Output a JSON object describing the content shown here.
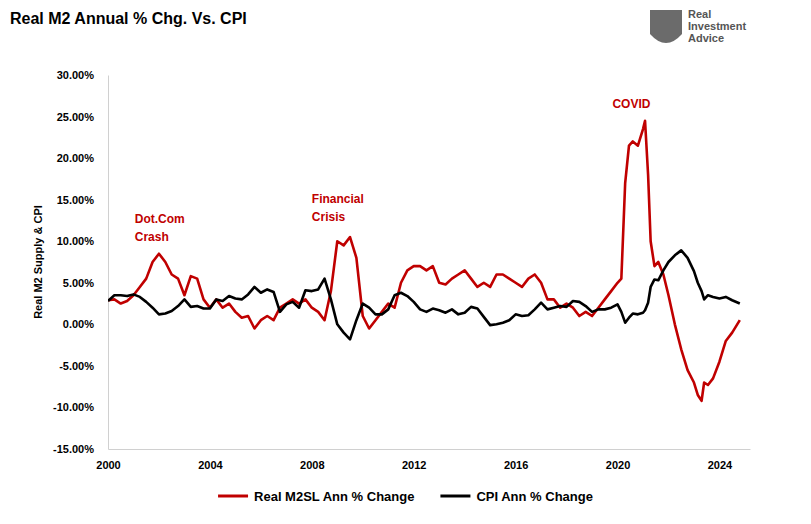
{
  "chart_data": {
    "type": "line",
    "title": "Real M2 Annual % Chg. Vs. CPI",
    "watermark": "Real Investment Advice",
    "y_label": "Real M2 Supply & CPI",
    "x": [
      2000,
      2000.25,
      2000.5,
      2000.75,
      2001,
      2001.25,
      2001.5,
      2001.75,
      2002,
      2002.25,
      2002.5,
      2002.75,
      2003,
      2003.25,
      2003.5,
      2003.75,
      2004,
      2004.25,
      2004.5,
      2004.75,
      2005,
      2005.25,
      2005.5,
      2005.75,
      2006,
      2006.25,
      2006.5,
      2006.75,
      2007,
      2007.25,
      2007.5,
      2007.75,
      2008,
      2008.25,
      2008.5,
      2008.75,
      2009,
      2009.25,
      2009.5,
      2009.75,
      2010,
      2010.25,
      2010.5,
      2010.75,
      2011,
      2011.25,
      2011.5,
      2011.75,
      2012,
      2012.25,
      2012.5,
      2012.75,
      2013,
      2013.25,
      2013.5,
      2013.75,
      2014,
      2014.25,
      2014.5,
      2014.75,
      2015,
      2015.25,
      2015.5,
      2015.75,
      2016,
      2016.25,
      2016.5,
      2016.75,
      2017,
      2017.25,
      2017.5,
      2017.75,
      2018,
      2018.25,
      2018.5,
      2018.75,
      2019,
      2019.25,
      2019.5,
      2019.75,
      2020,
      2020.15,
      2020.3,
      2020.45,
      2020.6,
      2020.8,
      2021,
      2021.08,
      2021.2,
      2021.3,
      2021.45,
      2021.6,
      2021.8,
      2022,
      2022.25,
      2022.5,
      2022.75,
      2023,
      2023.15,
      2023.3,
      2023.4,
      2023.55,
      2023.75,
      2024,
      2024.25,
      2024.5,
      2024.8
    ],
    "series": [
      {
        "name": "Real M2SL Ann % Change",
        "color": "#c00000",
        "values": [
          2.9,
          3.0,
          2.5,
          2.8,
          3.5,
          4.5,
          5.5,
          7.5,
          8.5,
          7.5,
          6.0,
          5.5,
          3.5,
          5.8,
          5.5,
          3.0,
          2.0,
          3.0,
          2.0,
          2.5,
          1.5,
          0.8,
          1.0,
          -0.5,
          0.5,
          1.0,
          0.5,
          2.0,
          2.5,
          3.0,
          2.5,
          3.0,
          2.0,
          1.5,
          0.5,
          4.0,
          10.0,
          9.5,
          10.5,
          8.0,
          1.0,
          -0.5,
          0.5,
          1.5,
          2.5,
          2.0,
          5.0,
          6.5,
          7.0,
          7.0,
          6.5,
          7.0,
          5.0,
          4.8,
          5.5,
          6.0,
          6.5,
          5.5,
          4.5,
          5.0,
          4.5,
          6.0,
          6.0,
          5.5,
          5.0,
          4.5,
          5.5,
          6.0,
          5.0,
          3.0,
          3.0,
          2.0,
          2.5,
          2.0,
          1.0,
          1.5,
          1.0,
          2.0,
          3.0,
          4.0,
          5.0,
          5.5,
          17.0,
          21.5,
          22.0,
          21.5,
          23.5,
          24.5,
          18.0,
          10.0,
          7.0,
          7.5,
          6.0,
          3.5,
          0.0,
          -3.0,
          -5.5,
          -7.0,
          -8.5,
          -9.2,
          -7.0,
          -7.3,
          -6.5,
          -4.5,
          -2.0,
          -1.0,
          0.5
        ]
      },
      {
        "name": "CPI Ann % Change",
        "color": "#000000",
        "values": [
          2.8,
          3.5,
          3.5,
          3.4,
          3.6,
          3.3,
          2.7,
          2.0,
          1.2,
          1.3,
          1.6,
          2.2,
          3.0,
          2.1,
          2.2,
          1.9,
          1.9,
          3.0,
          2.8,
          3.4,
          3.1,
          3.0,
          3.6,
          4.5,
          3.8,
          4.2,
          3.9,
          1.5,
          2.4,
          2.7,
          2.0,
          4.1,
          4.0,
          4.2,
          5.5,
          3.0,
          0.0,
          -1.0,
          -1.8,
          0.5,
          2.5,
          2.0,
          1.2,
          1.2,
          1.8,
          3.5,
          3.8,
          3.4,
          2.7,
          1.8,
          1.5,
          1.9,
          1.7,
          1.4,
          1.8,
          1.2,
          1.4,
          2.1,
          1.9,
          0.9,
          -0.1,
          0.0,
          0.2,
          0.5,
          1.2,
          1.0,
          1.1,
          1.8,
          2.6,
          1.8,
          2.0,
          2.2,
          2.1,
          2.8,
          2.7,
          2.2,
          1.5,
          1.8,
          1.8,
          2.0,
          2.4,
          1.5,
          0.2,
          0.8,
          1.3,
          1.2,
          1.4,
          1.7,
          2.6,
          4.5,
          5.4,
          5.3,
          6.5,
          7.5,
          8.3,
          8.9,
          8.0,
          6.4,
          5.0,
          4.0,
          3.0,
          3.5,
          3.3,
          3.1,
          3.3,
          2.9,
          2.5
        ]
      }
    ],
    "xlim": [
      2000,
      2025.2
    ],
    "xticks": [
      2000,
      2004,
      2008,
      2012,
      2016,
      2020,
      2024
    ],
    "ylim": [
      -15,
      30
    ],
    "yticks": [
      {
        "value": -15,
        "label": "-15.00%"
      },
      {
        "value": -10,
        "label": "-10.00%"
      },
      {
        "value": -5,
        "label": "-5.00%"
      },
      {
        "value": 0,
        "label": "0.00%"
      },
      {
        "value": 5,
        "label": "5.00%"
      },
      {
        "value": 10,
        "label": "10.00%"
      },
      {
        "value": 15,
        "label": "15.00%"
      },
      {
        "value": 20,
        "label": "20.00%"
      },
      {
        "value": 25,
        "label": "25.00%"
      },
      {
        "value": 30,
        "label": "30.00%"
      }
    ],
    "annotations": [
      {
        "text": "Dot.Com Crash",
        "x": 2001.05,
        "y": 12.2
      },
      {
        "text": "Financial Crisis",
        "x": 2008.0,
        "y": 14.6
      },
      {
        "text": "COVID",
        "x": 2019.8,
        "y": 26.0
      }
    ],
    "grid": false,
    "legend": "bottom"
  }
}
